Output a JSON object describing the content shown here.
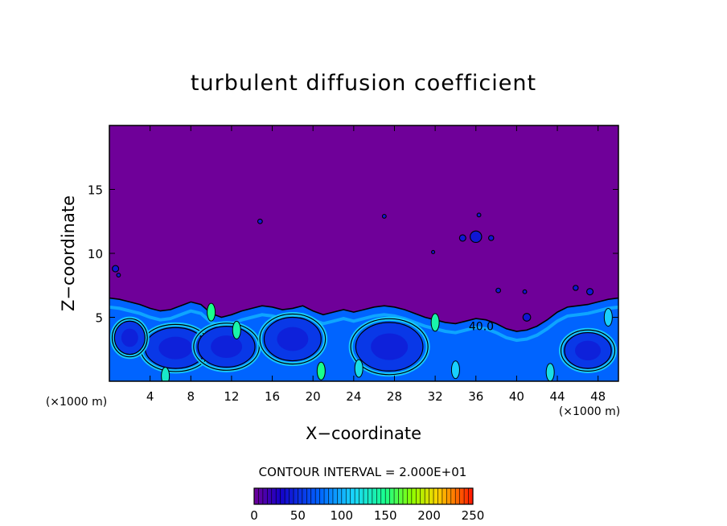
{
  "chart_data": {
    "type": "heatmap",
    "title": "turbulent diffusion coefficient",
    "xlabel": "X−coordinate",
    "ylabel": "Z−coordinate",
    "x_unit_left": "(×1000 m)",
    "x_unit_right": "(×1000 m)",
    "xlim": [
      0,
      50
    ],
    "ylim": [
      0,
      20
    ],
    "xticks": [
      4,
      8,
      12,
      16,
      20,
      24,
      28,
      32,
      36,
      40,
      44,
      48
    ],
    "yticks": [
      5,
      10,
      15
    ],
    "contour_interval": "CONTOUR INTERVAL = 2.000E+01",
    "contour_label": "40.0",
    "colorbar": {
      "min": 0,
      "max": 250,
      "ticks": [
        0,
        50,
        100,
        150,
        200,
        250
      ]
    },
    "background_value": 0,
    "boundary_layer_top": [
      [
        0,
        6.5
      ],
      [
        1,
        6.4
      ],
      [
        2,
        6.2
      ],
      [
        3,
        6.0
      ],
      [
        4,
        5.7
      ],
      [
        5,
        5.5
      ],
      [
        6,
        5.6
      ],
      [
        7,
        5.9
      ],
      [
        8,
        6.2
      ],
      [
        9,
        6.0
      ],
      [
        10,
        5.3
      ],
      [
        11,
        5.0
      ],
      [
        12,
        5.2
      ],
      [
        13,
        5.5
      ],
      [
        14,
        5.7
      ],
      [
        15,
        5.9
      ],
      [
        16,
        5.8
      ],
      [
        17,
        5.6
      ],
      [
        18,
        5.7
      ],
      [
        19,
        5.9
      ],
      [
        20,
        5.5
      ],
      [
        21,
        5.2
      ],
      [
        22,
        5.4
      ],
      [
        23,
        5.6
      ],
      [
        24,
        5.4
      ],
      [
        25,
        5.6
      ],
      [
        26,
        5.8
      ],
      [
        27,
        5.9
      ],
      [
        28,
        5.8
      ],
      [
        29,
        5.6
      ],
      [
        30,
        5.3
      ],
      [
        31,
        5.0
      ],
      [
        32,
        4.8
      ],
      [
        33,
        4.6
      ],
      [
        34,
        4.5
      ],
      [
        35,
        4.7
      ],
      [
        36,
        4.9
      ],
      [
        37,
        4.8
      ],
      [
        38,
        4.5
      ],
      [
        39,
        4.1
      ],
      [
        40,
        3.9
      ],
      [
        41,
        4.0
      ],
      [
        42,
        4.3
      ],
      [
        43,
        4.8
      ],
      [
        44,
        5.4
      ],
      [
        45,
        5.8
      ],
      [
        46,
        5.9
      ],
      [
        47,
        6.0
      ],
      [
        48,
        6.2
      ],
      [
        49,
        6.4
      ],
      [
        50,
        6.5
      ]
    ],
    "cells": [
      {
        "x": 6.5,
        "z": 2.6,
        "rx": 3.0,
        "rz": 1.6
      },
      {
        "x": 11.5,
        "z": 2.7,
        "rx": 2.8,
        "rz": 1.6
      },
      {
        "x": 18.0,
        "z": 3.3,
        "rx": 2.8,
        "rz": 1.7
      },
      {
        "x": 27.5,
        "z": 2.7,
        "rx": 3.3,
        "rz": 1.9
      },
      {
        "x": 2.0,
        "z": 3.4,
        "rx": 1.5,
        "rz": 1.3
      },
      {
        "x": 47.0,
        "z": 2.4,
        "rx": 2.3,
        "rz": 1.4
      }
    ],
    "plumes": [
      {
        "x": 5.5,
        "z": 0.4,
        "v": 130
      },
      {
        "x": 10.0,
        "z": 5.4,
        "v": 150
      },
      {
        "x": 12.5,
        "z": 4.0,
        "v": 140
      },
      {
        "x": 20.8,
        "z": 0.8,
        "v": 150
      },
      {
        "x": 24.5,
        "z": 1.0,
        "v": 120
      },
      {
        "x": 32.0,
        "z": 4.6,
        "v": 140
      },
      {
        "x": 34.0,
        "z": 0.9,
        "v": 110
      },
      {
        "x": 43.3,
        "z": 0.7,
        "v": 120
      },
      {
        "x": 49.0,
        "z": 5.0,
        "v": 110
      }
    ],
    "patches": [
      {
        "x": 36.0,
        "z": 11.3,
        "r": 0.45
      },
      {
        "x": 34.7,
        "z": 11.2,
        "r": 0.25
      },
      {
        "x": 37.5,
        "z": 11.2,
        "r": 0.2
      },
      {
        "x": 36.3,
        "z": 13.0,
        "r": 0.15
      },
      {
        "x": 14.8,
        "z": 12.5,
        "r": 0.18
      },
      {
        "x": 27.0,
        "z": 12.9,
        "r": 0.15
      },
      {
        "x": 0.6,
        "z": 8.8,
        "r": 0.25
      },
      {
        "x": 0.9,
        "z": 8.3,
        "r": 0.15
      },
      {
        "x": 47.2,
        "z": 7.0,
        "r": 0.25
      },
      {
        "x": 45.8,
        "z": 7.3,
        "r": 0.2
      },
      {
        "x": 38.2,
        "z": 7.1,
        "r": 0.18
      },
      {
        "x": 40.8,
        "z": 7.0,
        "r": 0.15
      },
      {
        "x": 41.0,
        "z": 5.0,
        "r": 0.3
      },
      {
        "x": 31.8,
        "z": 10.1,
        "r": 0.1
      }
    ]
  }
}
